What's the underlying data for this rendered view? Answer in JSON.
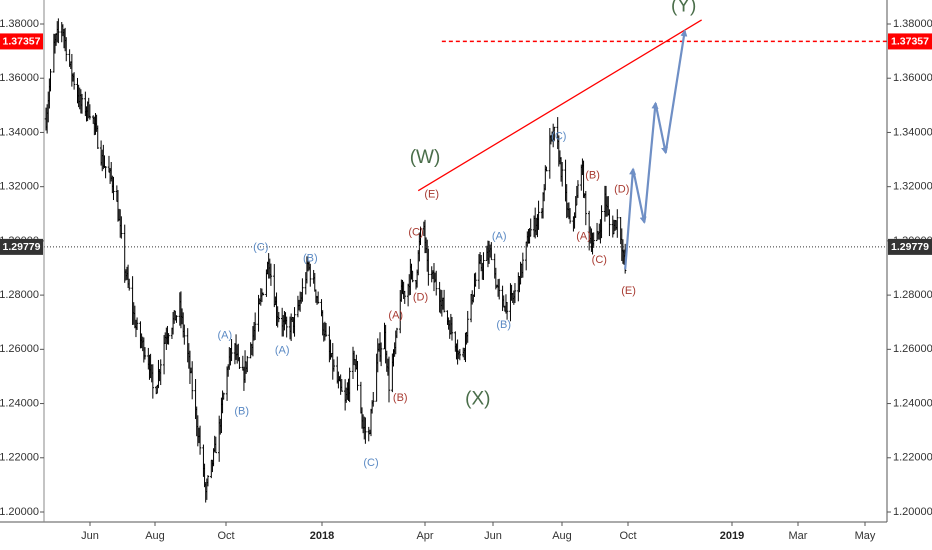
{
  "chart_data": {
    "type": "ohlc",
    "ylim": [
      1.195,
      1.3855
    ],
    "y_ticks": [
      "1.38000",
      "1.36000",
      "1.34000",
      "1.32000",
      "1.30000",
      "1.28000",
      "1.26000",
      "1.24000",
      "1.22000",
      "1.20000"
    ],
    "x_ticks": [
      {
        "label": "Jun",
        "bold": false
      },
      {
        "label": "Aug",
        "bold": false
      },
      {
        "label": "Oct",
        "bold": false
      },
      {
        "label": "2018",
        "bold": true
      },
      {
        "label": "Apr",
        "bold": false
      },
      {
        "label": "Jun",
        "bold": false
      },
      {
        "label": "Aug",
        "bold": false
      },
      {
        "label": "Oct",
        "bold": false
      },
      {
        "label": "2019",
        "bold": true
      },
      {
        "label": "Mar",
        "bold": false
      },
      {
        "label": "May",
        "bold": false
      }
    ],
    "current_price": {
      "label": "1.29779",
      "value": 1.29779,
      "color": "#333333"
    },
    "target_price": {
      "label": "1.37357",
      "value": 1.37357,
      "color": "#ff0000"
    },
    "price_path": [
      [
        "2017-05-01",
        1.345
      ],
      [
        "2017-05-08",
        1.372
      ],
      [
        "2017-05-15",
        1.38
      ],
      [
        "2017-05-22",
        1.365
      ],
      [
        "2017-06-01",
        1.35
      ],
      [
        "2017-06-10",
        1.348
      ],
      [
        "2017-06-20",
        1.33
      ],
      [
        "2017-07-01",
        1.32
      ],
      [
        "2017-07-10",
        1.29
      ],
      [
        "2017-07-20",
        1.268
      ],
      [
        "2017-08-01",
        1.255
      ],
      [
        "2017-08-05",
        1.242
      ],
      [
        "2017-08-15",
        1.265
      ],
      [
        "2017-08-28",
        1.275
      ],
      [
        "2017-09-05",
        1.255
      ],
      [
        "2017-09-15",
        1.224
      ],
      [
        "2017-09-20",
        1.207
      ],
      [
        "2017-10-01",
        1.228
      ],
      [
        "2017-10-10",
        1.255
      ],
      [
        "2017-10-15",
        1.262
      ],
      [
        "2017-10-22",
        1.248
      ],
      [
        "2017-11-05",
        1.272
      ],
      [
        "2017-11-15",
        1.293
      ],
      [
        "2017-11-22",
        1.274
      ],
      [
        "2017-12-01",
        1.267
      ],
      [
        "2017-12-10",
        1.272
      ],
      [
        "2017-12-20",
        1.291
      ],
      [
        "2017-12-28",
        1.28
      ],
      [
        "2018-01-05",
        1.263
      ],
      [
        "2018-01-15",
        1.248
      ],
      [
        "2018-01-22",
        1.24
      ],
      [
        "2018-01-30",
        1.258
      ],
      [
        "2018-02-07",
        1.231
      ],
      [
        "2018-02-12",
        1.228
      ],
      [
        "2018-02-20",
        1.258
      ],
      [
        "2018-02-26",
        1.265
      ],
      [
        "2018-03-02",
        1.247
      ],
      [
        "2018-03-08",
        1.262
      ],
      [
        "2018-03-12",
        1.28
      ],
      [
        "2018-03-18",
        1.282
      ],
      [
        "2018-03-21",
        1.288
      ],
      [
        "2018-03-25",
        1.283
      ],
      [
        "2018-04-01",
        1.31
      ],
      [
        "2018-04-05",
        1.29
      ],
      [
        "2018-04-15",
        1.282
      ],
      [
        "2018-04-22",
        1.272
      ],
      [
        "2018-05-01",
        1.262
      ],
      [
        "2018-05-05",
        1.255
      ],
      [
        "2018-05-15",
        1.28
      ],
      [
        "2018-05-20",
        1.289
      ],
      [
        "2018-06-01",
        1.296
      ],
      [
        "2018-06-05",
        1.285
      ],
      [
        "2018-06-10",
        1.276
      ],
      [
        "2018-06-20",
        1.278
      ],
      [
        "2018-06-28",
        1.29
      ],
      [
        "2018-07-05",
        1.303
      ],
      [
        "2018-07-15",
        1.31
      ],
      [
        "2018-07-22",
        1.335
      ],
      [
        "2018-07-28",
        1.34
      ],
      [
        "2018-08-05",
        1.318
      ],
      [
        "2018-08-10",
        1.305
      ],
      [
        "2018-08-15",
        1.312
      ],
      [
        "2018-08-20",
        1.33
      ],
      [
        "2018-08-25",
        1.304
      ],
      [
        "2018-09-01",
        1.298
      ],
      [
        "2018-09-05",
        1.304
      ],
      [
        "2018-09-10",
        1.317
      ],
      [
        "2018-09-15",
        1.303
      ],
      [
        "2018-09-22",
        1.309
      ],
      [
        "2018-09-28",
        1.289
      ]
    ],
    "projection": [
      [
        "2018-09-28",
        1.2895
      ],
      [
        "2018-10-05",
        1.3265
      ],
      [
        "2018-10-15",
        1.3068
      ],
      [
        "2018-10-25",
        1.3508
      ],
      [
        "2018-11-03",
        1.3325
      ],
      [
        "2018-11-20",
        1.3775
      ]
    ],
    "trendline": [
      [
        "2018-03-28",
        1.3185
      ],
      [
        "2018-12-05",
        1.3815
      ]
    ],
    "wave_labels": [
      {
        "text": "(C)",
        "date": "2017-11-08",
        "value": 1.2975,
        "color": "#5b8ac4",
        "size": "small"
      },
      {
        "text": "(A)",
        "date": "2017-10-07",
        "value": 1.265,
        "color": "#5b8ac4",
        "size": "small"
      },
      {
        "text": "(A)",
        "date": "2017-11-27",
        "value": 1.2595,
        "color": "#5b8ac4",
        "size": "small"
      },
      {
        "text": "(B)",
        "date": "2017-10-22",
        "value": 1.237,
        "color": "#5b8ac4",
        "size": "small"
      },
      {
        "text": "(B)",
        "date": "2017-12-22",
        "value": 1.2935,
        "color": "#5b8ac4",
        "size": "small"
      },
      {
        "text": "(C)",
        "date": "2018-02-14",
        "value": 1.218,
        "color": "#5b8ac4",
        "size": "small"
      },
      {
        "text": "(A)",
        "date": "2018-03-08",
        "value": 1.2725,
        "color": "#a83b32",
        "size": "small"
      },
      {
        "text": "(B)",
        "date": "2018-03-12",
        "value": 1.242,
        "color": "#a83b32",
        "size": "small"
      },
      {
        "text": "(C)",
        "date": "2018-03-26",
        "value": 1.303,
        "color": "#a83b32",
        "size": "small"
      },
      {
        "text": "(D)",
        "date": "2018-03-30",
        "value": 1.279,
        "color": "#a83b32",
        "size": "small"
      },
      {
        "text": "(E)",
        "date": "2018-04-09",
        "value": 1.317,
        "color": "#a83b32",
        "size": "small"
      },
      {
        "text": "(W)",
        "date": "2018-04-03",
        "value": 1.3305,
        "color": "#4a6e4a",
        "size": "large"
      },
      {
        "text": "(X)",
        "date": "2018-05-20",
        "value": 1.2415,
        "color": "#4a6e4a",
        "size": "large"
      },
      {
        "text": "(A)",
        "date": "2018-06-08",
        "value": 1.3015,
        "color": "#5b8ac4",
        "size": "small"
      },
      {
        "text": "(B)",
        "date": "2018-06-12",
        "value": 1.269,
        "color": "#5b8ac4",
        "size": "small"
      },
      {
        "text": "(C)",
        "date": "2018-07-31",
        "value": 1.3385,
        "color": "#5b8ac4",
        "size": "small"
      },
      {
        "text": "(B)",
        "date": "2018-08-30",
        "value": 1.324,
        "color": "#a83b32",
        "size": "small"
      },
      {
        "text": "(A)",
        "date": "2018-08-22",
        "value": 1.3015,
        "color": "#a83b32",
        "size": "small"
      },
      {
        "text": "(C)",
        "date": "2018-09-05",
        "value": 1.293,
        "color": "#a83b32",
        "size": "small"
      },
      {
        "text": "(D)",
        "date": "2018-09-25",
        "value": 1.319,
        "color": "#a83b32",
        "size": "small"
      },
      {
        "text": "(E)",
        "date": "2018-10-01",
        "value": 1.2815,
        "color": "#a83b32",
        "size": "small"
      },
      {
        "text": "(Y)",
        "date": "2018-11-19",
        "value": 1.3865,
        "color": "#4a6e4a",
        "size": "large"
      }
    ],
    "colors": {
      "bars": "#000000",
      "projection": "#6f8fc5",
      "trendline": "#ff0000",
      "target_line": "#ff0000",
      "current_line": "#333333"
    }
  }
}
